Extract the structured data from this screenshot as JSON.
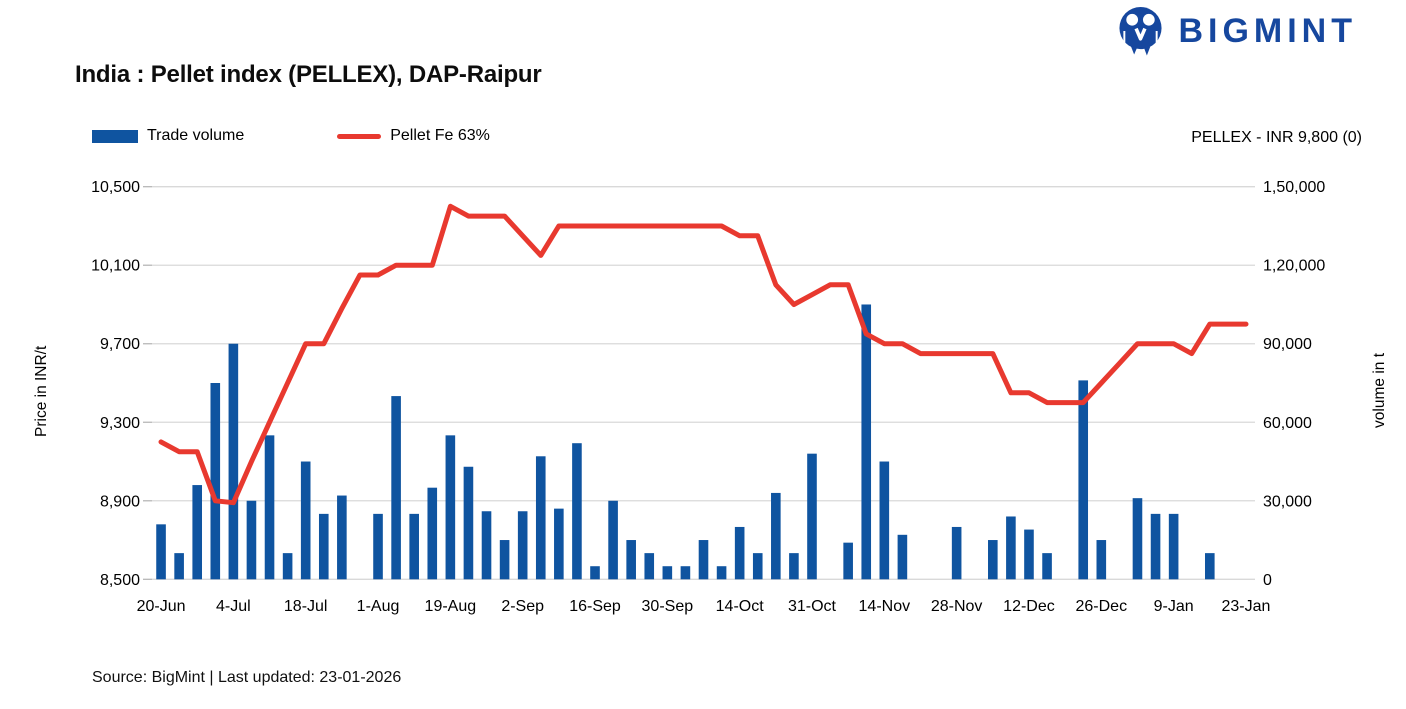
{
  "header": {
    "title": "India : Pellet index (PELLEX), DAP-Raipur",
    "logo_text": "BIGMINT"
  },
  "legend": {
    "items": [
      {
        "label": "Trade volume",
        "swatch": "bar",
        "color": "#0f54a0"
      },
      {
        "label": "Pellet Fe 63%",
        "swatch": "line",
        "color": "#e8392f"
      }
    ]
  },
  "annotation": {
    "text": "PELLEX - INR 9,800 (0)"
  },
  "footer": {
    "source": "Source: BigMint | Last updated: 23-01-2026"
  },
  "colors": {
    "brand": "#16479e",
    "bar": "#0f54a0",
    "line": "#e8392f",
    "grid": "#d9d9d9",
    "tick": "#b7b7b7"
  },
  "chart_data": {
    "type": "combo",
    "n_points": 61,
    "grid": "horizontal",
    "legend_position": "top-left",
    "x_axis": {
      "tick_labels": [
        "20-Jun",
        "4-Jul",
        "18-Jul",
        "1-Aug",
        "19-Aug",
        "2-Sep",
        "16-Sep",
        "30-Sep",
        "14-Oct",
        "31-Oct",
        "14-Nov",
        "28-Nov",
        "12-Dec",
        "26-Dec",
        "9-Jan",
        "23-Jan"
      ],
      "tick_every": 4
    },
    "left_axis": {
      "title": "Price in INR/t",
      "tick_labels": [
        "10,500",
        "10,100",
        "9,700",
        "9,300",
        "8,900",
        "8,500"
      ],
      "tick_values": [
        10500,
        10100,
        9700,
        9300,
        8900,
        8500
      ],
      "min": 8500,
      "max": 10500
    },
    "right_axis": {
      "title": "volume in t",
      "tick_labels": [
        "1,50,000",
        "1,20,000",
        "90,000",
        "60,000",
        "30,000",
        "0"
      ],
      "tick_values": [
        150000,
        120000,
        90000,
        60000,
        30000,
        0
      ],
      "min": 0,
      "max": 150000
    },
    "series": [
      {
        "name": "Trade volume",
        "type": "bar",
        "axis": "right",
        "color": "#0f54a0",
        "values": [
          21000,
          10000,
          36000,
          75000,
          90000,
          30000,
          55000,
          10000,
          45000,
          25000,
          32000,
          0,
          25000,
          70000,
          25000,
          35000,
          55000,
          43000,
          26000,
          15000,
          26000,
          47000,
          27000,
          52000,
          5000,
          30000,
          15000,
          10000,
          5000,
          5000,
          15000,
          5000,
          20000,
          10000,
          33000,
          10000,
          48000,
          0,
          14000,
          105000,
          45000,
          17000,
          0,
          0,
          20000,
          0,
          15000,
          24000,
          19000,
          10000,
          0,
          76000,
          15000,
          0,
          31000,
          25000,
          25000,
          0,
          10000,
          0,
          0
        ]
      },
      {
        "name": "Pellet Fe 63%",
        "type": "line",
        "axis": "left",
        "color": "#e8392f",
        "values": [
          9200,
          9150,
          9150,
          8900,
          8890,
          9100,
          9300,
          9500,
          9700,
          9700,
          9880,
          10050,
          10050,
          10100,
          10100,
          10100,
          10400,
          10350,
          10350,
          10350,
          10250,
          10150,
          10300,
          10300,
          10300,
          10300,
          10300,
          10300,
          10300,
          10300,
          10300,
          10300,
          10250,
          10250,
          10000,
          9900,
          9950,
          10000,
          10000,
          9750,
          9700,
          9700,
          9650,
          9650,
          9650,
          9650,
          9650,
          9450,
          9450,
          9400,
          9400,
          9400,
          9500,
          9600,
          9700,
          9700,
          9700,
          9650,
          9800,
          9800,
          9800
        ]
      }
    ]
  }
}
